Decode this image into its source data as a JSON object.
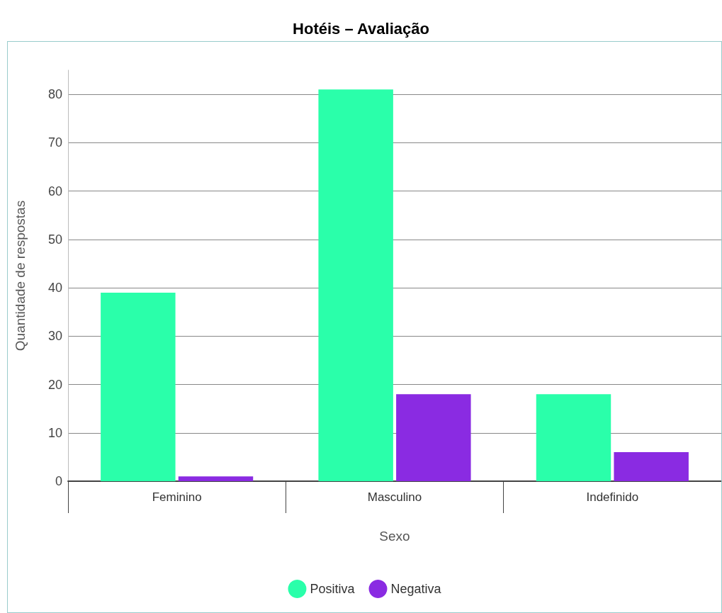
{
  "chart_data": {
    "type": "bar",
    "title": "Hotéis – Avaliação",
    "xlabel": "Sexo",
    "ylabel": "Quantidade de respostas",
    "categories": [
      "Feminino",
      "Masculino",
      "Indefinido"
    ],
    "series": [
      {
        "name": "Positiva",
        "color": "#2affaa",
        "values": [
          39,
          81,
          18
        ]
      },
      {
        "name": "Negativa",
        "color": "#8a2be2",
        "values": [
          1,
          18,
          6
        ]
      }
    ],
    "ylim": [
      0,
      85
    ],
    "yticks": [
      0,
      10,
      20,
      30,
      40,
      50,
      60,
      70,
      80
    ],
    "grid": "y",
    "legend": "bottom"
  }
}
